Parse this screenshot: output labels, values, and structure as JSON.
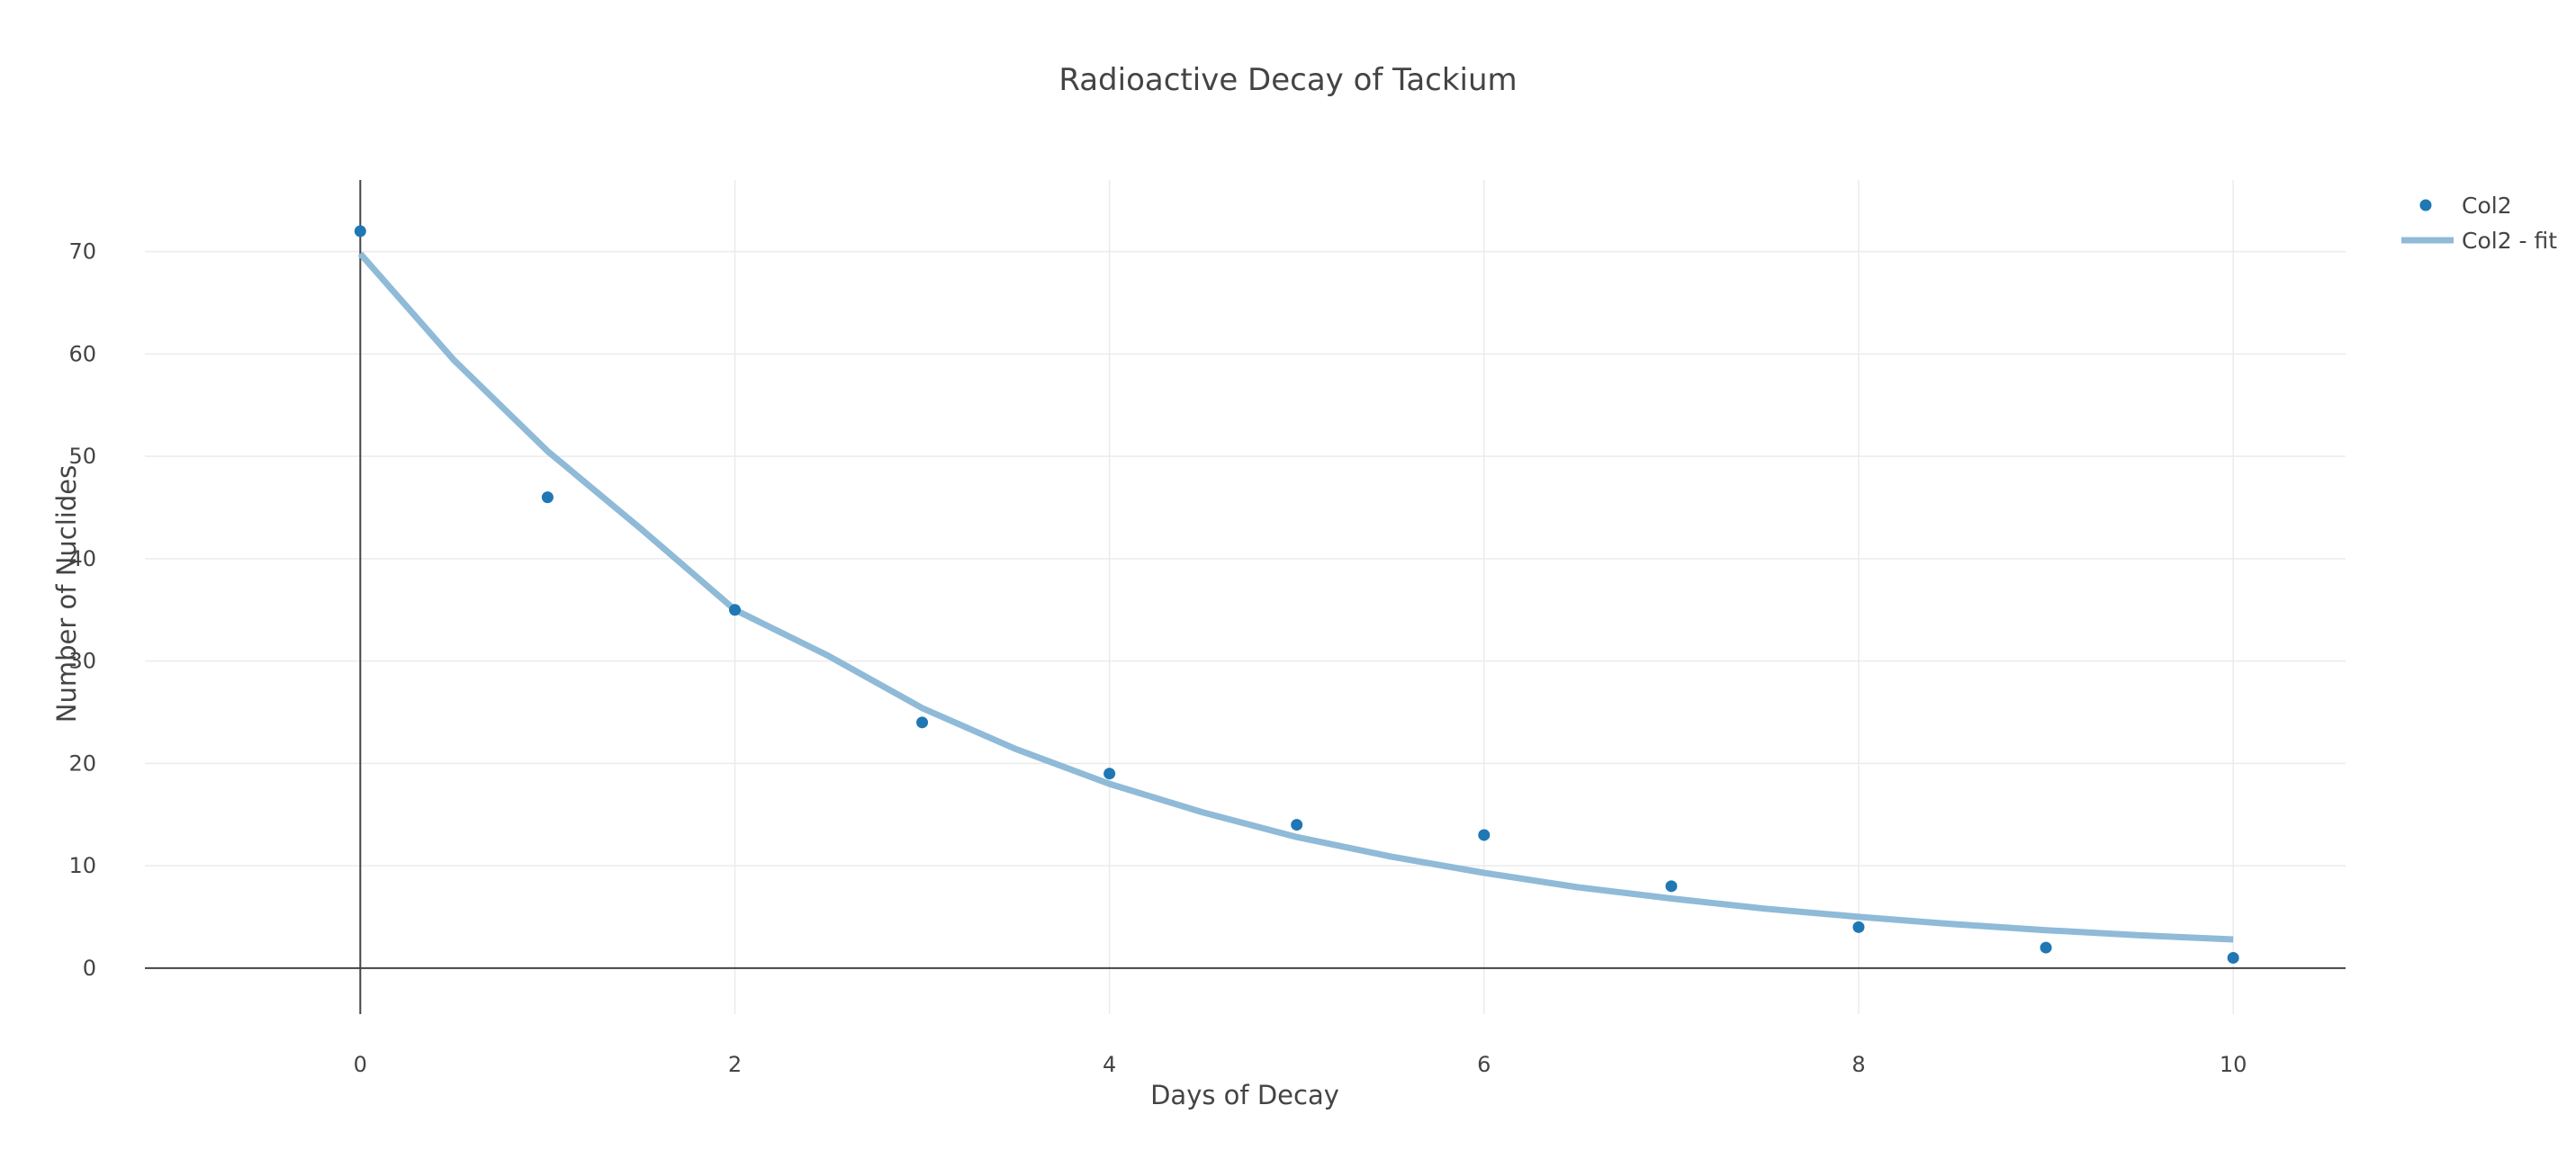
{
  "chart_data": {
    "type": "scatter",
    "title": "Radioactive Decay of Tackium",
    "xlabel": "Days of Decay",
    "ylabel": "Number of Nuclides",
    "xlim": [
      -1.15,
      10.6
    ],
    "ylim": [
      -4.5,
      77
    ],
    "x_ticks": [
      0,
      2,
      4,
      6,
      8,
      10
    ],
    "y_ticks": [
      0,
      10,
      20,
      30,
      40,
      50,
      60,
      70
    ],
    "grid": true,
    "legend_position": "top-right",
    "series": [
      {
        "name": "Col2",
        "mode": "markers",
        "color": "#1f77b4",
        "x": [
          0,
          1,
          2,
          3,
          4,
          5,
          6,
          7,
          8,
          9,
          10
        ],
        "y": [
          72,
          46,
          35,
          24,
          19,
          14,
          13,
          8,
          4,
          2,
          1
        ]
      },
      {
        "name": "Col2 - fit",
        "mode": "lines",
        "color": "#8fbad8",
        "x": [
          0,
          0.5,
          1,
          1.5,
          2,
          2.5,
          3,
          3.5,
          4,
          4.5,
          5,
          5.5,
          6,
          6.5,
          7,
          7.5,
          8,
          8.5,
          9,
          9.5,
          10
        ],
        "y": [
          69.8,
          59.4,
          50.5,
          42.9,
          35.0,
          30.5,
          25.4,
          21.4,
          18.0,
          15.2,
          12.8,
          10.9,
          9.3,
          7.9,
          6.8,
          5.8,
          5.0,
          4.3,
          3.7,
          3.2,
          2.8
        ]
      }
    ]
  }
}
